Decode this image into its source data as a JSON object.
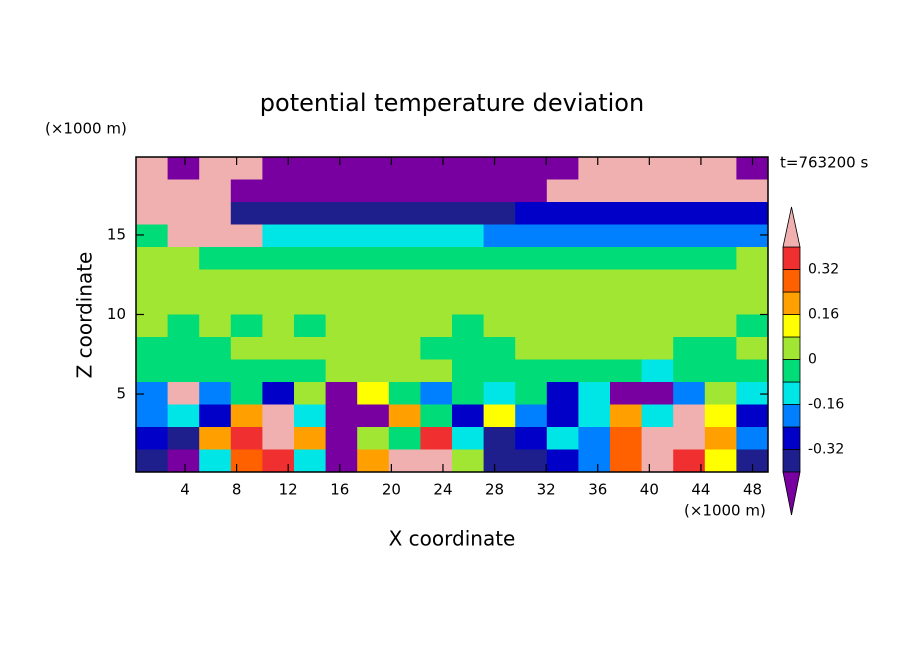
{
  "chart_data": {
    "type": "contourf",
    "title": "potential temperature deviation",
    "x_label": "X coordinate",
    "y_label": "Z coordinate",
    "x_unit": "(×1000 m)",
    "y_unit": "(×1000 m)",
    "annotation": "t=763200 s",
    "xlim": [
      0.2,
      49.2
    ],
    "ylim": [
      0.1,
      19.9
    ],
    "xticks": [
      4,
      8,
      12,
      16,
      20,
      24,
      28,
      32,
      36,
      40,
      44,
      48
    ],
    "yticks": [
      5,
      10,
      15
    ],
    "levels": [
      -0.4,
      -0.32,
      -0.24,
      -0.16,
      -0.08,
      0,
      0.08,
      0.16,
      0.24,
      0.32,
      0.4
    ],
    "colors": [
      "#7800a0",
      "#1e1e8c",
      "#0000c8",
      "#0080ff",
      "#00e6e6",
      "#00dc78",
      "#a0e632",
      "#ffff00",
      "#ffa000",
      "#ff6000",
      "#f03030",
      "#f0b0b0"
    ],
    "colorbar_ticks": [
      -0.32,
      -0.16,
      0,
      0.16,
      0.32
    ],
    "z": [
      [
        0.45,
        -0.45,
        0.45,
        0.45,
        -0.45,
        -0.45,
        -0.45,
        -0.45,
        -0.45,
        -0.45,
        -0.45,
        -0.45,
        -0.45,
        -0.45,
        0.45,
        0.45,
        0.45,
        0.45,
        0.45,
        -0.45
      ],
      [
        0.45,
        0.45,
        0.45,
        -0.45,
        -0.45,
        -0.45,
        -0.45,
        -0.45,
        -0.45,
        -0.45,
        -0.45,
        -0.45,
        -0.45,
        0.45,
        0.45,
        0.45,
        0.45,
        0.45,
        0.45,
        0.45
      ],
      [
        0.45,
        0.45,
        0.45,
        -0.36,
        -0.36,
        -0.36,
        -0.36,
        -0.36,
        -0.36,
        -0.36,
        -0.36,
        -0.36,
        -0.28,
        -0.28,
        -0.28,
        -0.28,
        -0.28,
        -0.28,
        -0.28,
        -0.28
      ],
      [
        -0.04,
        0.45,
        0.45,
        0.45,
        -0.12,
        -0.12,
        -0.12,
        -0.12,
        -0.12,
        -0.12,
        -0.12,
        -0.2,
        -0.2,
        -0.2,
        -0.2,
        -0.2,
        -0.2,
        -0.2,
        -0.2,
        -0.2
      ],
      [
        0.04,
        0.04,
        -0.04,
        -0.04,
        -0.04,
        -0.04,
        -0.04,
        -0.04,
        -0.04,
        -0.04,
        -0.04,
        -0.04,
        -0.04,
        -0.04,
        -0.04,
        -0.04,
        -0.04,
        -0.04,
        -0.04,
        0.04
      ],
      [
        0.04,
        0.04,
        0.04,
        0.04,
        0.04,
        0.04,
        0.04,
        0.04,
        0.04,
        0.04,
        0.04,
        0.04,
        0.04,
        0.04,
        0.04,
        0.04,
        0.04,
        0.04,
        0.04,
        0.04
      ],
      [
        0.04,
        0.04,
        0.04,
        0.04,
        0.04,
        0.04,
        0.04,
        0.04,
        0.04,
        0.04,
        0.04,
        0.04,
        0.04,
        0.04,
        0.04,
        0.04,
        0.04,
        0.04,
        0.04,
        0.04
      ],
      [
        0.04,
        -0.04,
        0.04,
        -0.04,
        0.04,
        -0.04,
        0.04,
        0.04,
        0.04,
        0.04,
        -0.04,
        0.04,
        0.04,
        0.04,
        0.04,
        0.04,
        0.04,
        0.04,
        0.04,
        -0.04
      ],
      [
        -0.04,
        -0.04,
        -0.04,
        0.04,
        0.04,
        0.04,
        0.04,
        0.04,
        0.04,
        -0.04,
        -0.04,
        -0.04,
        0.04,
        0.04,
        0.04,
        0.04,
        0.04,
        -0.04,
        -0.04,
        0.04
      ],
      [
        -0.04,
        -0.04,
        -0.04,
        -0.04,
        -0.04,
        -0.04,
        0.04,
        0.04,
        0.04,
        0.04,
        -0.04,
        -0.04,
        -0.04,
        -0.04,
        -0.04,
        -0.04,
        -0.12,
        -0.04,
        -0.04,
        -0.04
      ],
      [
        -0.2,
        0.45,
        -0.2,
        -0.04,
        -0.28,
        0.04,
        -0.45,
        0.12,
        -0.04,
        -0.2,
        -0.04,
        -0.12,
        -0.04,
        -0.28,
        -0.12,
        -0.45,
        -0.45,
        -0.2,
        0.04,
        -0.12
      ],
      [
        -0.2,
        -0.12,
        -0.28,
        0.2,
        0.45,
        -0.12,
        -0.45,
        -0.45,
        0.2,
        -0.04,
        -0.28,
        0.12,
        -0.2,
        -0.28,
        -0.12,
        0.2,
        -0.12,
        0.45,
        0.12,
        -0.28
      ],
      [
        -0.28,
        -0.36,
        0.2,
        0.36,
        0.45,
        0.2,
        -0.45,
        0.04,
        -0.04,
        0.36,
        -0.12,
        -0.36,
        -0.28,
        -0.12,
        -0.2,
        0.28,
        0.45,
        0.45,
        0.2,
        -0.2
      ],
      [
        -0.36,
        -0.45,
        -0.12,
        0.28,
        0.36,
        -0.12,
        -0.45,
        0.2,
        0.45,
        0.45,
        0.04,
        -0.36,
        -0.36,
        -0.28,
        -0.2,
        0.28,
        0.45,
        0.36,
        0.12,
        -0.36
      ]
    ]
  }
}
